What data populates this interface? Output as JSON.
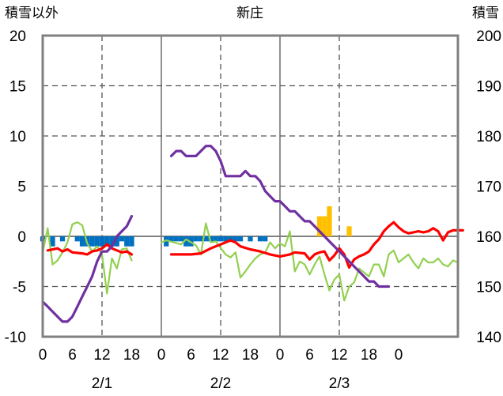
{
  "chart_data": {
    "type": "line",
    "title": "新庄",
    "ylabel_left": "積雪以外",
    "ylabel_right": "積雪",
    "ylim_left": [
      -10,
      20
    ],
    "ylim_right": [
      140,
      200
    ],
    "yticks_left": [
      "20",
      "15",
      "10",
      "5",
      "0",
      "-5",
      "-10"
    ],
    "yticks_right": [
      "200",
      "190",
      "180",
      "170",
      "160",
      "150",
      "140"
    ],
    "xticks": [
      "0",
      "6",
      "12",
      "18",
      "0",
      "6",
      "12",
      "18",
      "0",
      "6",
      "12",
      "18",
      "0"
    ],
    "date_labels": [
      "2/1",
      "2/2",
      "2/3"
    ],
    "grid": true,
    "colors": {
      "temperature": "#ff0000",
      "wind": "#92d050",
      "snow_depth": "#7030a0",
      "precip_liquid": "#0070c0",
      "precip_snow": "#ffc000",
      "frame": "#808080"
    },
    "series": [
      {
        "key": "temperature",
        "axis": "left",
        "points": [
          [
            1,
            -1.4
          ],
          [
            3,
            -1.2
          ],
          [
            4,
            -1.5
          ],
          [
            5,
            -1.3
          ],
          [
            6,
            -1.6
          ],
          [
            8,
            -1.7
          ],
          [
            9,
            -1.8
          ],
          [
            10,
            -1.5
          ],
          [
            11,
            -1.4
          ],
          [
            12,
            -1.2
          ],
          [
            13,
            -0.8
          ],
          [
            14,
            -1.2
          ],
          [
            15,
            -1.4
          ],
          [
            16,
            -1.6
          ],
          [
            17,
            -1.5
          ],
          [
            18,
            -1.8
          ],
          [
            26,
            -1.8
          ],
          [
            30,
            -1.8
          ],
          [
            32,
            -1.7
          ],
          [
            34,
            -1.2
          ],
          [
            36,
            -0.8
          ],
          [
            37,
            -0.6
          ],
          [
            38,
            -0.4
          ],
          [
            39,
            -0.6
          ],
          [
            40,
            -1.0
          ],
          [
            42,
            -1.3
          ],
          [
            44,
            -1.5
          ],
          [
            46,
            -1.8
          ],
          [
            48,
            -2.0
          ],
          [
            50,
            -1.8
          ],
          [
            51,
            -1.6
          ],
          [
            53,
            -1.7
          ],
          [
            54,
            -2.3
          ],
          [
            55,
            -1.8
          ],
          [
            56,
            -1.6
          ],
          [
            57,
            -1.5
          ],
          [
            58,
            -2.4
          ],
          [
            59,
            -1.9
          ],
          [
            60,
            -1.2
          ],
          [
            61,
            -1.8
          ],
          [
            62,
            -3.1
          ],
          [
            63,
            -2.3
          ],
          [
            64,
            -2.0
          ],
          [
            65,
            -1.8
          ],
          [
            66,
            -1.5
          ],
          [
            67,
            -0.8
          ],
          [
            68,
            -0.3
          ],
          [
            69,
            0.5
          ],
          [
            70,
            1.0
          ],
          [
            71,
            1.4
          ],
          [
            72,
            0.9
          ],
          [
            73,
            0.5
          ],
          [
            74,
            0.3
          ],
          [
            75,
            0.4
          ],
          [
            76,
            0.5
          ],
          [
            77,
            0.4
          ],
          [
            78,
            0.5
          ],
          [
            79,
            0.8
          ],
          [
            80,
            0.5
          ],
          [
            81,
            -0.4
          ],
          [
            82,
            0.4
          ],
          [
            83,
            0.6
          ],
          [
            84,
            0.6
          ],
          [
            85,
            0.6
          ]
        ]
      },
      {
        "key": "wind",
        "axis": "left",
        "points": [
          [
            0,
            -1.6
          ],
          [
            1,
            0.8
          ],
          [
            2,
            -2.8
          ],
          [
            3,
            -2.4
          ],
          [
            4,
            -1.6
          ],
          [
            5,
            -0.6
          ],
          [
            6,
            1.2
          ],
          [
            7,
            1.4
          ],
          [
            8,
            1.1
          ],
          [
            9,
            -0.7
          ],
          [
            10,
            -1.5
          ],
          [
            11,
            -1.0
          ],
          [
            12,
            -1.8
          ],
          [
            13,
            -5.7
          ],
          [
            14,
            -2.2
          ],
          [
            15,
            -3.2
          ],
          [
            16,
            -1.3
          ],
          [
            17,
            -1.2
          ],
          [
            18,
            -2.4
          ],
          [
            24,
            -0.6
          ],
          [
            25,
            -0.4
          ],
          [
            28,
            -0.8
          ],
          [
            29,
            -0.3
          ],
          [
            31,
            -0.9
          ],
          [
            32,
            -1.8
          ],
          [
            33,
            1.3
          ],
          [
            34,
            -0.6
          ],
          [
            35,
            -0.5
          ],
          [
            37,
            -1.8
          ],
          [
            38,
            -2.1
          ],
          [
            39,
            -1.6
          ],
          [
            40,
            -4.1
          ],
          [
            41,
            -3.5
          ],
          [
            42,
            -2.8
          ],
          [
            43,
            -2.2
          ],
          [
            44,
            -1.8
          ],
          [
            45,
            -1.6
          ],
          [
            46,
            -0.6
          ],
          [
            47,
            -1.2
          ],
          [
            48,
            -0.7
          ],
          [
            49,
            -1.0
          ],
          [
            50,
            0.5
          ],
          [
            51,
            -3.5
          ],
          [
            52,
            -2.5
          ],
          [
            53,
            -2.8
          ],
          [
            54,
            -3.8
          ],
          [
            55,
            -2.8
          ],
          [
            56,
            -2.0
          ],
          [
            57,
            -3.8
          ],
          [
            58,
            -5.4
          ],
          [
            59,
            -4.3
          ],
          [
            60,
            -3.8
          ],
          [
            61,
            -6.4
          ],
          [
            62,
            -5.0
          ],
          [
            63,
            -4.6
          ],
          [
            64,
            -3.2
          ],
          [
            65,
            -3.6
          ],
          [
            66,
            -4.0
          ],
          [
            67,
            -2.8
          ],
          [
            68,
            -2.8
          ],
          [
            69,
            -4.0
          ],
          [
            70,
            -1.8
          ],
          [
            71,
            -1.4
          ],
          [
            72,
            -2.6
          ],
          [
            73,
            -2.2
          ],
          [
            74,
            -1.8
          ],
          [
            75,
            -2.6
          ],
          [
            76,
            -3.2
          ],
          [
            77,
            -2.2
          ],
          [
            78,
            -2.6
          ],
          [
            79,
            -2.6
          ],
          [
            80,
            -2.2
          ],
          [
            81,
            -2.8
          ],
          [
            82,
            -3.0
          ],
          [
            83,
            -2.4
          ],
          [
            84,
            -2.6
          ]
        ]
      },
      {
        "key": "snow_depth",
        "axis": "right",
        "points": [
          [
            0,
            147
          ],
          [
            1,
            146
          ],
          [
            2,
            145
          ],
          [
            3,
            144
          ],
          [
            4,
            143
          ],
          [
            5,
            143
          ],
          [
            6,
            144
          ],
          [
            7,
            146
          ],
          [
            8,
            148
          ],
          [
            9,
            150
          ],
          [
            10,
            152
          ],
          [
            11,
            155
          ],
          [
            12,
            157
          ],
          [
            13,
            157
          ],
          [
            14,
            158
          ],
          [
            15,
            160
          ],
          [
            16,
            161
          ],
          [
            17,
            162
          ],
          [
            18,
            164
          ],
          [
            26,
            176
          ],
          [
            27,
            177
          ],
          [
            28,
            177
          ],
          [
            29,
            176
          ],
          [
            30,
            176
          ],
          [
            31,
            176
          ],
          [
            32,
            177
          ],
          [
            33,
            178
          ],
          [
            34,
            178
          ],
          [
            35,
            177
          ],
          [
            36,
            175
          ],
          [
            37,
            172
          ],
          [
            38,
            172
          ],
          [
            39,
            172
          ],
          [
            40,
            172
          ],
          [
            41,
            173
          ],
          [
            42,
            172
          ],
          [
            43,
            172
          ],
          [
            44,
            171
          ],
          [
            45,
            169
          ],
          [
            46,
            168
          ],
          [
            47,
            167
          ],
          [
            48,
            167
          ],
          [
            49,
            166
          ],
          [
            50,
            165
          ],
          [
            51,
            165
          ],
          [
            52,
            164
          ],
          [
            53,
            163
          ],
          [
            54,
            163
          ],
          [
            55,
            162
          ],
          [
            56,
            161
          ],
          [
            57,
            160
          ],
          [
            58,
            159
          ],
          [
            59,
            158
          ],
          [
            60,
            157
          ],
          [
            61,
            156
          ],
          [
            62,
            155
          ],
          [
            63,
            154
          ],
          [
            64,
            153
          ],
          [
            65,
            152
          ],
          [
            66,
            151
          ],
          [
            67,
            151
          ],
          [
            68,
            150
          ],
          [
            69,
            150
          ],
          [
            70,
            150
          ]
        ]
      }
    ],
    "bars": [
      {
        "key": "precip_liquid",
        "axis": "left",
        "points": [
          [
            0,
            -0.5
          ],
          [
            2,
            -1.0
          ],
          [
            4,
            -0.5
          ],
          [
            7,
            -0.5
          ],
          [
            8,
            -1.0
          ],
          [
            9,
            -1.0
          ],
          [
            10,
            -1.0
          ],
          [
            11,
            -1.0
          ],
          [
            12,
            -1.0
          ],
          [
            13,
            -1.0
          ],
          [
            14,
            -1.0
          ],
          [
            15,
            -1.0
          ],
          [
            16,
            -0.5
          ],
          [
            17,
            -1.0
          ],
          [
            18,
            -1.0
          ],
          [
            25,
            -1.0
          ],
          [
            26,
            -0.5
          ],
          [
            27,
            -0.5
          ],
          [
            28,
            -0.5
          ],
          [
            29,
            -1.0
          ],
          [
            30,
            -1.0
          ],
          [
            31,
            -0.5
          ],
          [
            32,
            -0.5
          ],
          [
            33,
            -0.5
          ],
          [
            34,
            -0.5
          ],
          [
            35,
            -0.5
          ],
          [
            36,
            -0.5
          ],
          [
            37,
            -0.5
          ],
          [
            38,
            -0.5
          ],
          [
            39,
            -0.5
          ],
          [
            40,
            -0.5
          ],
          [
            42,
            -0.5
          ],
          [
            44,
            -0.5
          ],
          [
            45,
            -0.5
          ]
        ]
      },
      {
        "key": "precip_snow",
        "axis": "left",
        "points": [
          [
            56,
            2.0
          ],
          [
            57,
            2.0
          ],
          [
            58,
            3.0
          ],
          [
            62,
            1.0
          ]
        ]
      }
    ]
  }
}
